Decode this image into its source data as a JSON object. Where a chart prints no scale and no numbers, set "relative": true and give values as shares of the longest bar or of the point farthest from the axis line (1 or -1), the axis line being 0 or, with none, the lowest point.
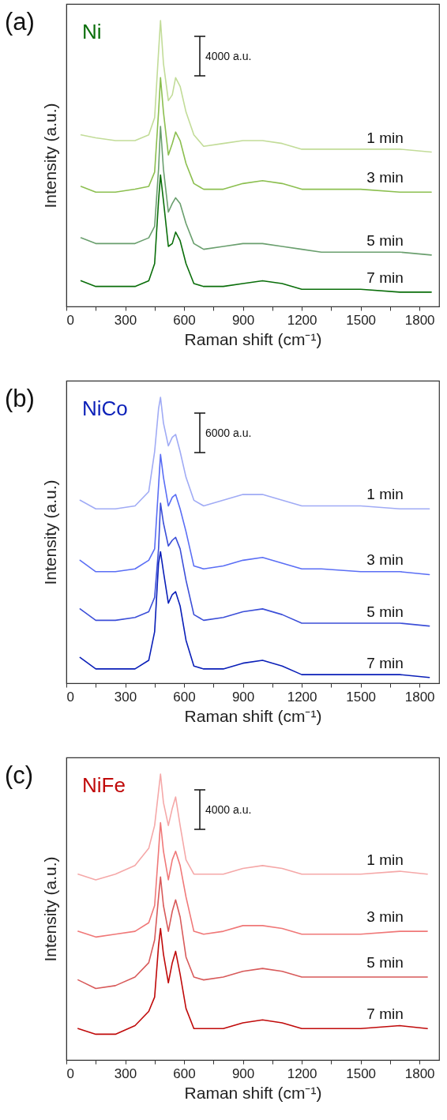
{
  "chart_data": [
    {
      "type": "line",
      "title": "(a)",
      "subtitle": "Ni",
      "xlabel": "Raman shift (cm⁻¹)",
      "ylabel": "Intensity (a.u.)",
      "relative": true,
      "annotations": [
        "4000 a.u."
      ],
      "xlim": [
        0,
        1900
      ],
      "xticks": [
        0,
        {
          "value": 150,
          "label": null
        },
        300,
        {
          "value": 450,
          "label": null
        },
        600,
        {
          "value": 750,
          "label": null
        },
        900,
        {
          "value": 1050,
          "label": null
        },
        1200,
        {
          "value": 1350,
          "label": null
        },
        1500,
        {
          "value": 1650,
          "label": null
        },
        1800
      ],
      "x": [
        75,
        150,
        250,
        350,
        420,
        450,
        470,
        480,
        495,
        520,
        540,
        557,
        580,
        610,
        650,
        700,
        800,
        900,
        1000,
        1100,
        1200,
        1300,
        1500,
        1700,
        1860
      ],
      "series": [
        {
          "name": "1 min",
          "color": "#c2dc98",
          "values": [
            0.6,
            0.59,
            0.58,
            0.58,
            0.6,
            0.66,
            0.89,
            1,
            0.85,
            0.72,
            0.74,
            0.8,
            0.77,
            0.68,
            0.6,
            0.56,
            0.57,
            0.58,
            0.58,
            0.57,
            0.55,
            0.55,
            0.55,
            0.55,
            0.54
          ]
        },
        {
          "name": "3 min",
          "color": "#8cbf50",
          "values": [
            0.42,
            0.4,
            0.4,
            0.41,
            0.42,
            0.47,
            0.68,
            0.8,
            0.68,
            0.53,
            0.57,
            0.61,
            0.58,
            0.5,
            0.43,
            0.41,
            0.41,
            0.43,
            0.44,
            0.43,
            0.41,
            0.41,
            0.41,
            0.4,
            0.4
          ]
        },
        {
          "name": "5 min",
          "color": "#6a9f6e",
          "values": [
            0.24,
            0.22,
            0.22,
            0.22,
            0.24,
            0.28,
            0.48,
            0.63,
            0.48,
            0.33,
            0.36,
            0.38,
            0.36,
            0.29,
            0.22,
            0.2,
            0.21,
            0.22,
            0.22,
            0.21,
            0.2,
            0.19,
            0.19,
            0.19,
            0.18
          ]
        },
        {
          "name": "7 min",
          "color": "#0a6e0a",
          "values": [
            0.09,
            0.07,
            0.07,
            0.07,
            0.09,
            0.15,
            0.37,
            0.46,
            0.37,
            0.21,
            0.22,
            0.26,
            0.23,
            0.15,
            0.08,
            0.07,
            0.07,
            0.08,
            0.09,
            0.08,
            0.06,
            0.06,
            0.06,
            0.05,
            0.05
          ]
        }
      ]
    },
    {
      "type": "line",
      "title": "(b)",
      "subtitle": "NiCo",
      "xlabel": "Raman shift (cm⁻¹)",
      "ylabel": "Intensity (a.u.)",
      "relative": true,
      "annotations": [
        "6000 a.u."
      ],
      "xlim": [
        0,
        1900
      ],
      "xticks": [
        0,
        {
          "value": 150,
          "label": null
        },
        300,
        {
          "value": 450,
          "label": null
        },
        600,
        {
          "value": 750,
          "label": null
        },
        900,
        {
          "value": 1050,
          "label": null
        },
        1200,
        {
          "value": 1350,
          "label": null
        },
        1500,
        {
          "value": 1650,
          "label": null
        },
        1800
      ],
      "x": [
        70,
        150,
        250,
        350,
        420,
        450,
        470,
        480,
        495,
        520,
        540,
        557,
        580,
        610,
        650,
        700,
        800,
        900,
        1000,
        1100,
        1200,
        1300,
        1500,
        1700,
        1850
      ],
      "series": [
        {
          "name": "1 min",
          "color": "#a0abf5",
          "values": [
            0.64,
            0.61,
            0.61,
            0.62,
            0.67,
            0.81,
            0.96,
            1,
            0.91,
            0.83,
            0.86,
            0.87,
            0.81,
            0.72,
            0.64,
            0.62,
            0.64,
            0.66,
            0.66,
            0.64,
            0.62,
            0.62,
            0.62,
            0.61,
            0.61
          ]
        },
        {
          "name": "3 min",
          "color": "#5a6ef5",
          "values": [
            0.43,
            0.39,
            0.39,
            0.4,
            0.43,
            0.47,
            0.69,
            0.8,
            0.72,
            0.62,
            0.65,
            0.66,
            0.61,
            0.53,
            0.41,
            0.4,
            0.41,
            0.43,
            0.44,
            0.42,
            0.4,
            0.4,
            0.39,
            0.39,
            0.38
          ]
        },
        {
          "name": "5 min",
          "color": "#3c4fd8",
          "values": [
            0.26,
            0.22,
            0.22,
            0.23,
            0.25,
            0.3,
            0.47,
            0.63,
            0.56,
            0.48,
            0.5,
            0.51,
            0.47,
            0.36,
            0.24,
            0.22,
            0.23,
            0.25,
            0.26,
            0.24,
            0.21,
            0.21,
            0.21,
            0.21,
            0.2
          ]
        },
        {
          "name": "7 min",
          "color": "#0a1fb8",
          "values": [
            0.09,
            0.05,
            0.05,
            0.05,
            0.08,
            0.18,
            0.42,
            0.46,
            0.39,
            0.28,
            0.31,
            0.32,
            0.27,
            0.15,
            0.06,
            0.05,
            0.05,
            0.07,
            0.08,
            0.06,
            0.03,
            0.03,
            0.03,
            0.03,
            0.02
          ]
        }
      ]
    },
    {
      "type": "line",
      "title": "(c)",
      "subtitle": "NiFe",
      "xlabel": "Raman shift (cm⁻¹)",
      "ylabel": "Intensity (a.u.)",
      "relative": true,
      "annotations": [
        "4000 a.u."
      ],
      "xlim": [
        0,
        1900
      ],
      "xticks": [
        0,
        {
          "value": 150,
          "label": null
        },
        300,
        {
          "value": 450,
          "label": null
        },
        600,
        {
          "value": 750,
          "label": null
        },
        900,
        {
          "value": 1050,
          "label": null
        },
        1200,
        {
          "value": 1350,
          "label": null
        },
        1500,
        {
          "value": 1650,
          "label": null
        },
        1800
      ],
      "x": [
        60,
        150,
        250,
        350,
        420,
        450,
        470,
        480,
        495,
        520,
        540,
        557,
        580,
        610,
        650,
        700,
        800,
        900,
        1000,
        1100,
        1200,
        1300,
        1500,
        1700,
        1840
      ],
      "series": [
        {
          "name": "1 min",
          "color": "#f5a8a8",
          "values": [
            0.65,
            0.63,
            0.65,
            0.68,
            0.74,
            0.82,
            0.94,
            1,
            0.9,
            0.82,
            0.88,
            0.92,
            0.82,
            0.7,
            0.65,
            0.65,
            0.65,
            0.67,
            0.68,
            0.67,
            0.65,
            0.65,
            0.65,
            0.66,
            0.65
          ]
        },
        {
          "name": "3 min",
          "color": "#f07878",
          "values": [
            0.45,
            0.43,
            0.44,
            0.45,
            0.48,
            0.54,
            0.73,
            0.83,
            0.73,
            0.63,
            0.7,
            0.73,
            0.68,
            0.57,
            0.45,
            0.44,
            0.45,
            0.47,
            0.47,
            0.46,
            0.44,
            0.44,
            0.44,
            0.45,
            0.45
          ]
        },
        {
          "name": "5 min",
          "color": "#d85a5a",
          "values": [
            0.28,
            0.25,
            0.26,
            0.29,
            0.34,
            0.42,
            0.57,
            0.64,
            0.54,
            0.45,
            0.52,
            0.56,
            0.5,
            0.36,
            0.29,
            0.28,
            0.29,
            0.31,
            0.32,
            0.31,
            0.29,
            0.29,
            0.29,
            0.29,
            0.29
          ]
        },
        {
          "name": "7 min",
          "color": "#c00a0a",
          "values": [
            0.11,
            0.09,
            0.09,
            0.12,
            0.17,
            0.22,
            0.4,
            0.46,
            0.37,
            0.27,
            0.34,
            0.38,
            0.3,
            0.18,
            0.11,
            0.11,
            0.11,
            0.13,
            0.14,
            0.13,
            0.11,
            0.11,
            0.11,
            0.12,
            0.11
          ]
        }
      ]
    }
  ]
}
